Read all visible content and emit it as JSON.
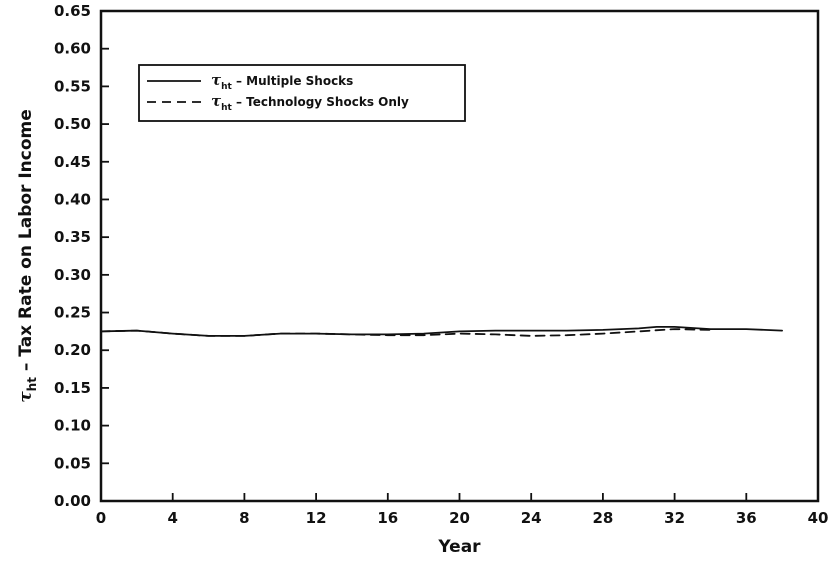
{
  "chart_data": {
    "type": "line",
    "xlabel": "Year",
    "ylabel": {
      "symbol": "τ",
      "subscript": "ht",
      "text": " – Tax Rate on Labor Income"
    },
    "xlim": [
      0,
      40
    ],
    "ylim": [
      0,
      0.65
    ],
    "xticks": [
      "0",
      "4",
      "8",
      "12",
      "16",
      "20",
      "24",
      "28",
      "32",
      "36",
      "40"
    ],
    "yticks": [
      "0.00",
      "0.05",
      "0.10",
      "0.15",
      "0.20",
      "0.25",
      "0.30",
      "0.35",
      "0.40",
      "0.45",
      "0.50",
      "0.55",
      "0.60",
      "0.65"
    ],
    "grid": false,
    "legend_position": "upper-left",
    "legend": [
      {
        "symbol": "τ",
        "subscript": "ht",
        "text": " – Multiple Shocks"
      },
      {
        "symbol": "τ",
        "subscript": "ht",
        "text": " – Technology Shocks Only"
      }
    ],
    "series": [
      {
        "name": "Multiple Shocks",
        "style": "solid",
        "color": "#111111",
        "x": [
          0,
          2,
          4,
          6,
          8,
          10,
          12,
          14,
          16,
          18,
          20,
          22,
          24,
          26,
          28,
          30,
          31,
          32,
          34,
          36,
          38
        ],
        "y": [
          0.225,
          0.226,
          0.222,
          0.219,
          0.219,
          0.222,
          0.222,
          0.221,
          0.221,
          0.222,
          0.225,
          0.226,
          0.226,
          0.226,
          0.227,
          0.229,
          0.231,
          0.231,
          0.228,
          0.228,
          0.226
        ]
      },
      {
        "name": "Technology Shocks Only",
        "style": "dashed",
        "color": "#111111",
        "x": [
          0,
          2,
          4,
          6,
          8,
          10,
          12,
          14,
          16,
          18,
          20,
          22,
          24,
          26,
          28,
          30,
          32,
          34
        ],
        "y": [
          0.225,
          0.226,
          0.222,
          0.219,
          0.219,
          0.222,
          0.222,
          0.221,
          0.22,
          0.22,
          0.222,
          0.221,
          0.219,
          0.22,
          0.222,
          0.225,
          0.228,
          0.227
        ]
      }
    ]
  }
}
